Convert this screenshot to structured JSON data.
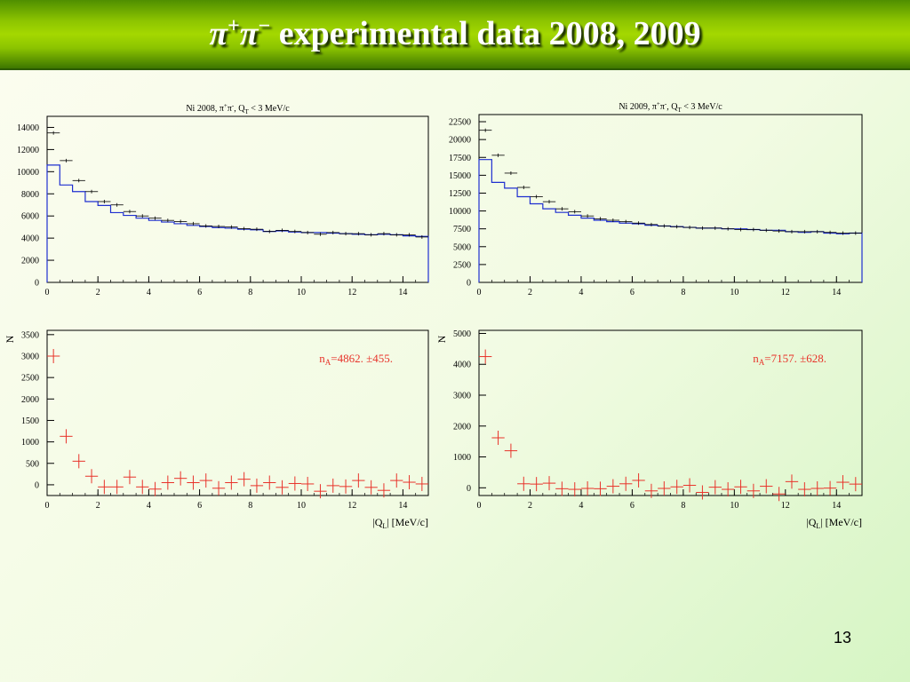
{
  "slide": {
    "title_base": "π",
    "title_sup1": "+",
    "title_sup2": "−",
    "title_rest": " experimental data 2008, 2009",
    "page_number": "13"
  },
  "colors": {
    "histogram_line": "#1f2fd0",
    "data_points": "#000000",
    "residuals": "#e8332a",
    "annotation": "#e8332a"
  },
  "chart_data": [
    {
      "type": "histogram",
      "title": "Ni 2008, π⁺π⁻, Q_T < 3 MeV/c",
      "title_parts": {
        "a": "Ni 2008, π",
        "b": "+",
        "c": "π",
        "d": "-",
        "e": ", Q",
        "f": "T",
        "g": " < 3 MeV/c"
      },
      "xlim": [
        0,
        15
      ],
      "ylim": [
        0,
        15000
      ],
      "xticks": [
        0,
        2,
        4,
        6,
        8,
        10,
        12,
        14
      ],
      "yticks": [
        0,
        2000,
        4000,
        6000,
        8000,
        10000,
        12000,
        14000
      ],
      "bin_width": 0.5,
      "series": [
        {
          "values": [
            10600,
            8800,
            8200,
            7300,
            6950,
            6300,
            6050,
            5800,
            5600,
            5450,
            5300,
            5150,
            5050,
            4950,
            4900,
            4800,
            4750,
            4600,
            4650,
            4550,
            4500,
            4500,
            4450,
            4400,
            4350,
            4300,
            4350,
            4300,
            4200,
            4150
          ]
        },
        {
          "values": [
            13500,
            11000,
            9200,
            8200,
            7300,
            7000,
            6400,
            6000,
            5800,
            5600,
            5500,
            5300,
            5100,
            5050,
            5000,
            4850,
            4800,
            4600,
            4700,
            4600,
            4500,
            4350,
            4500,
            4400,
            4400,
            4300,
            4400,
            4300,
            4300,
            4100
          ]
        }
      ]
    },
    {
      "type": "histogram",
      "title": "Ni 2009, π⁺π⁻, Q_T < 3 MeV/c",
      "title_parts": {
        "a": "Ni 2009, π",
        "b": "+",
        "c": "π",
        "d": "-",
        "e": ", Q",
        "f": "T",
        "g": " < 3 MeV/c"
      },
      "xlim": [
        0,
        15
      ],
      "ylim": [
        0,
        23500
      ],
      "xticks": [
        0,
        2,
        4,
        6,
        8,
        10,
        12,
        14
      ],
      "yticks": [
        0,
        2500,
        5000,
        7500,
        10000,
        12500,
        15000,
        17500,
        20000,
        22500
      ],
      "bin_width": 0.5,
      "series": [
        {
          "values": [
            17200,
            14000,
            13200,
            12000,
            11000,
            10300,
            9800,
            9400,
            9000,
            8700,
            8500,
            8300,
            8200,
            8000,
            7900,
            7800,
            7700,
            7600,
            7600,
            7500,
            7500,
            7400,
            7300,
            7300,
            7100,
            7000,
            7100,
            6900,
            6800,
            6900
          ]
        },
        {
          "values": [
            21300,
            17800,
            15300,
            13300,
            12000,
            11300,
            10300,
            9900,
            9300,
            8900,
            8700,
            8500,
            8300,
            8100,
            7900,
            7800,
            7700,
            7600,
            7600,
            7500,
            7400,
            7400,
            7300,
            7200,
            7100,
            7100,
            7100,
            7000,
            6900,
            6900
          ]
        }
      ]
    },
    {
      "type": "scatter",
      "xlabel_parts": {
        "a": "|Q",
        "b": "L",
        "c": "| [MeV/c]"
      },
      "ylabel": "N",
      "annotation_parts": {
        "a": "n",
        "b": "A",
        "c": "=4862. ±455."
      },
      "xlim": [
        0,
        15
      ],
      "ylim": [
        -250,
        3600
      ],
      "xticks": [
        0,
        2,
        4,
        6,
        8,
        10,
        12,
        14
      ],
      "yticks": [
        0,
        500,
        1000,
        1500,
        2000,
        2500,
        3000,
        3500
      ],
      "x": [
        0.25,
        0.75,
        1.25,
        1.75,
        2.25,
        2.75,
        3.25,
        3.75,
        4.25,
        4.75,
        5.25,
        5.75,
        6.25,
        6.75,
        7.25,
        7.75,
        8.25,
        8.75,
        9.25,
        9.75,
        10.25,
        10.75,
        11.25,
        11.75,
        12.25,
        12.75,
        13.25,
        13.75,
        14.25,
        14.75
      ],
      "values": [
        3000,
        1130,
        550,
        200,
        -50,
        -50,
        180,
        -50,
        -100,
        50,
        150,
        50,
        100,
        -80,
        50,
        130,
        -20,
        50,
        -60,
        30,
        20,
        -150,
        -20,
        -40,
        100,
        -60,
        -130,
        100,
        60,
        20
      ]
    },
    {
      "type": "scatter",
      "xlabel_parts": {
        "a": "|Q",
        "b": "L",
        "c": "| [MeV/c]"
      },
      "ylabel": "N",
      "annotation_parts": {
        "a": "n",
        "b": "A",
        "c": "=7157. ±628."
      },
      "xlim": [
        0,
        15
      ],
      "ylim": [
        -250,
        5100
      ],
      "xticks": [
        0,
        2,
        4,
        6,
        8,
        10,
        12,
        14
      ],
      "yticks": [
        0,
        1000,
        2000,
        3000,
        4000,
        5000
      ],
      "x": [
        0.25,
        0.75,
        1.25,
        1.75,
        2.25,
        2.75,
        3.25,
        3.75,
        4.25,
        4.75,
        5.25,
        5.75,
        6.25,
        6.75,
        7.25,
        7.75,
        8.25,
        8.75,
        9.25,
        9.75,
        10.25,
        10.75,
        11.25,
        11.75,
        12.25,
        12.75,
        13.25,
        13.75,
        14.25,
        14.75
      ],
      "values": [
        4250,
        1620,
        1200,
        130,
        120,
        150,
        -30,
        -50,
        -20,
        -30,
        50,
        130,
        240,
        -100,
        -20,
        30,
        80,
        -150,
        20,
        -50,
        30,
        -100,
        50,
        -200,
        200,
        -50,
        -20,
        -10,
        180,
        120
      ]
    }
  ]
}
